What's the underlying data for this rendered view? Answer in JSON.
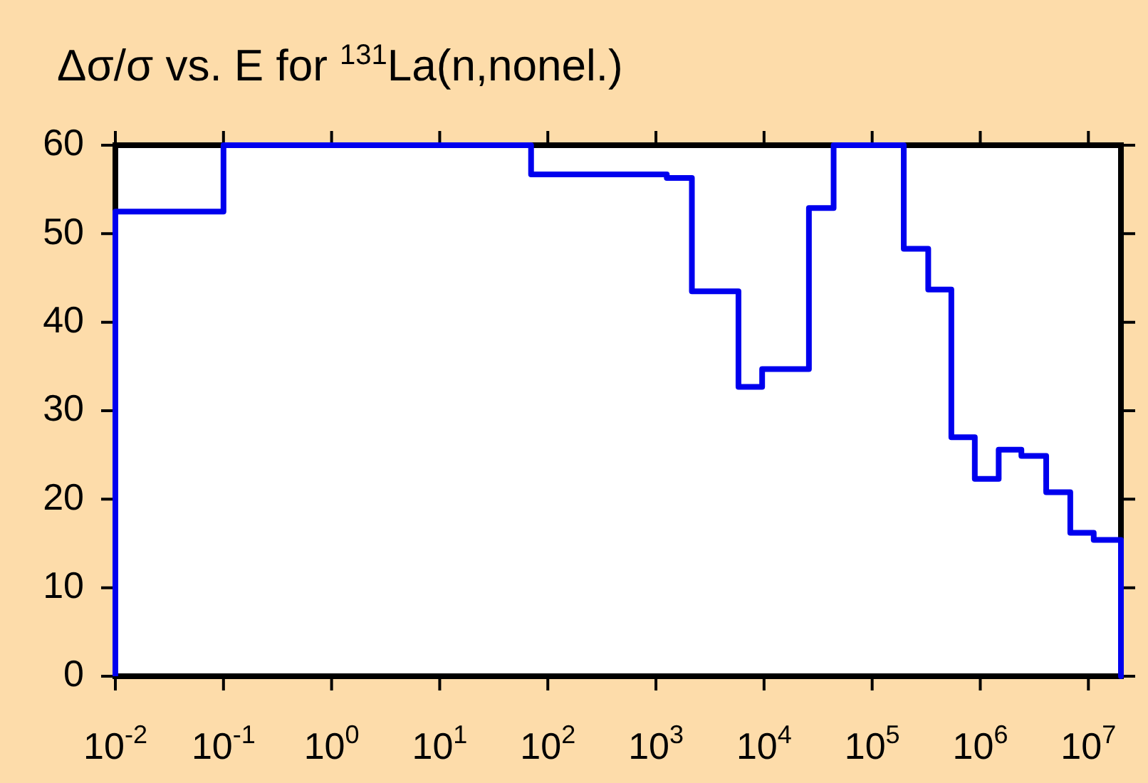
{
  "chart_data": {
    "type": "histogram",
    "title": "Δσ/σ vs. E for $^{131}$La(n,nonel.)",
    "bins": [
      0.01,
      0.1,
      70,
      1260,
      2150,
      5800,
      9600,
      26000,
      44000,
      196000,
      330000,
      540000,
      890000,
      1480000,
      2400000,
      4070000,
      6800000,
      11200000,
      20000000
    ],
    "values": [
      52.5,
      60,
      56.7,
      56.3,
      43.5,
      32.7,
      34.7,
      52.9,
      60,
      48.3,
      43.7,
      27.0,
      22.3,
      25.6,
      24.9,
      20.8,
      16.2,
      15.4
    ],
    "color": "#0000ee",
    "log": "x",
    "xlim": [
      0.01,
      20000000
    ],
    "xticks": [
      {
        "value": 0.01,
        "label": "10$^{-2}$"
      },
      {
        "value": 0.1,
        "label": "10$^{-1}$"
      },
      {
        "value": 1,
        "label": "10$^{0}$"
      },
      {
        "value": 10,
        "label": "10$^{1}$"
      },
      {
        "value": 100,
        "label": "10$^{2}$"
      },
      {
        "value": 1000,
        "label": "10$^{3}$"
      },
      {
        "value": 10000,
        "label": "10$^{4}$"
      },
      {
        "value": 100000,
        "label": "10$^{5}$"
      },
      {
        "value": 1000000,
        "label": "10$^{6}$"
      },
      {
        "value": 10000000,
        "label": "10$^{7}$"
      }
    ],
    "ylim": [
      0,
      60
    ],
    "yticks": [
      0,
      10,
      20,
      30,
      40,
      50,
      60
    ],
    "grid": false,
    "legend": false
  }
}
